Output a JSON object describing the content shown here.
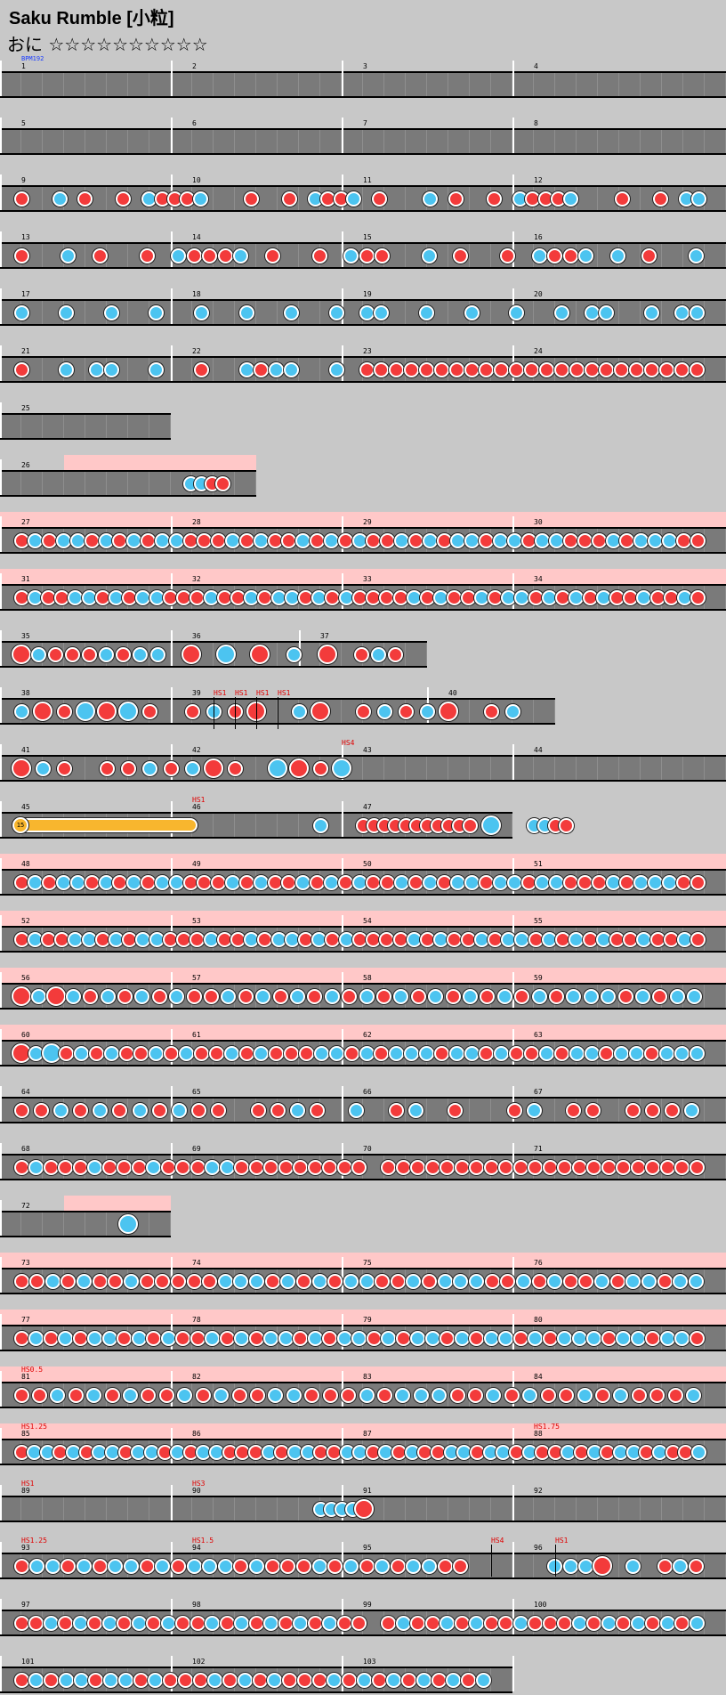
{
  "header": {
    "title": "Saku Rumble [小粒]",
    "difficulty": "おに ☆☆☆☆☆☆☆☆☆☆"
  },
  "colors": {
    "don": "#f33b3b",
    "ka": "#4cc4f0",
    "gogo": "#ffc8c8",
    "drumroll": "#f8b62e"
  },
  "chart": {
    "bpm_label": "BPM192",
    "roll_label": "15",
    "measure_numbers": [
      "1",
      "2",
      "3",
      "4",
      "5",
      "6",
      "7",
      "8",
      "9",
      "10",
      "11",
      "12",
      "13",
      "14",
      "15",
      "16",
      "17",
      "18",
      "19",
      "20",
      "21",
      "22",
      "23",
      "24",
      "25",
      "26",
      "27",
      "28",
      "29",
      "30",
      "31",
      "32",
      "33",
      "34",
      "35",
      "36",
      "37",
      "38",
      "39",
      "40",
      "41",
      "42",
      "43",
      "44",
      "45",
      "46",
      "47",
      "48",
      "49",
      "50",
      "51",
      "52",
      "53",
      "54",
      "55",
      "56",
      "57",
      "58",
      "59",
      "60",
      "61",
      "62",
      "63",
      "64",
      "65",
      "66",
      "67",
      "68",
      "69",
      "70",
      "71",
      "72",
      "73",
      "74",
      "75",
      "76",
      "77",
      "78",
      "79",
      "80",
      "81",
      "82",
      "83",
      "84",
      "85",
      "86",
      "87",
      "88",
      "89",
      "90",
      "91",
      "92",
      "93",
      "94",
      "95",
      "96",
      "97",
      "98",
      "99",
      "100",
      "101",
      "102",
      "103"
    ],
    "scroll_labels": [
      "HS1",
      "HS1",
      "HS1",
      "HS1",
      "HS4",
      "HS1",
      "HS0.5",
      "HS1.25",
      "HS1.75",
      "HS1",
      "HS3",
      "HS1.25",
      "HS1.5",
      "HS4",
      "HS1"
    ],
    "don_name": "don-note",
    "ka_name": "ka-note"
  }
}
